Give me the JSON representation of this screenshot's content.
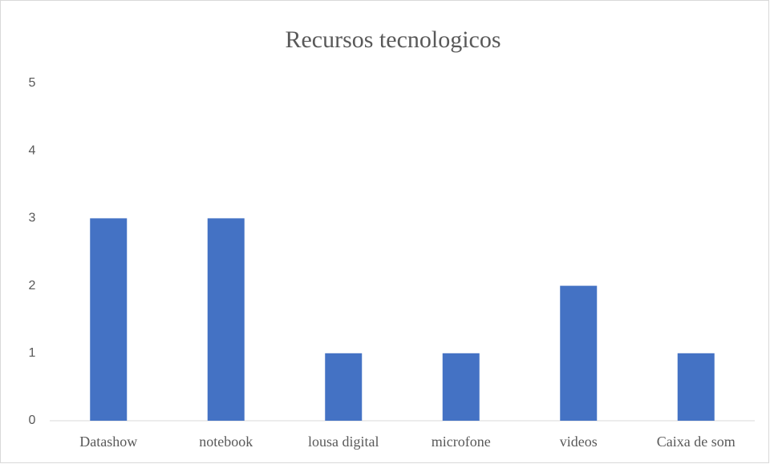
{
  "chart_data": {
    "type": "bar",
    "title": "Recursos tecnologicos",
    "categories": [
      "Datashow",
      "notebook",
      "lousa digital",
      "microfone",
      "videos",
      "Caixa de som"
    ],
    "values": [
      3,
      3,
      1,
      1,
      2,
      1
    ],
    "color": "#4472c4",
    "ylim": [
      0,
      5
    ],
    "yticks": [
      0,
      1,
      2,
      3,
      4,
      5
    ],
    "grid": false
  }
}
